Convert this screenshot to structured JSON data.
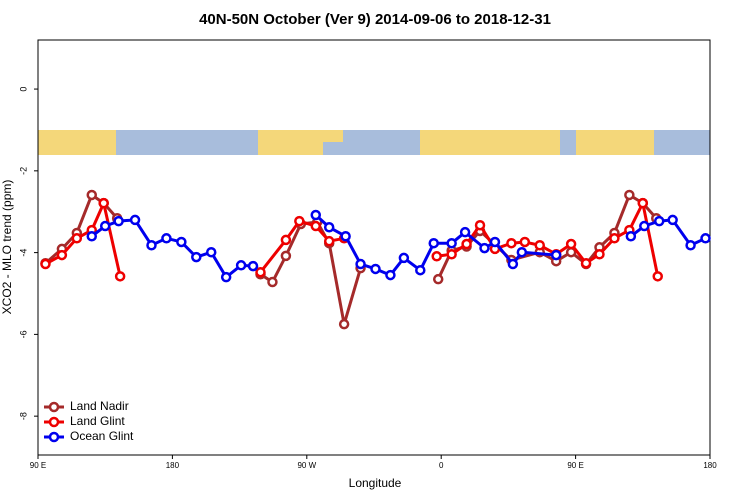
{
  "chart_data": {
    "type": "line",
    "title": "40N-50N October (Ver 9)   2014-09-06 to 2018-12-31",
    "x_label": "Longitude",
    "y_label": "XCO2 - MLO trend (ppm)",
    "xlim": [
      90,
      540
    ],
    "xticks": [
      {
        "value": 90,
        "label": "90 E"
      },
      {
        "value": 180,
        "label": "180"
      },
      {
        "value": 270,
        "label": "90 W"
      },
      {
        "value": 360,
        "label": "0"
      },
      {
        "value": 450,
        "label": "90 E"
      },
      {
        "value": 540,
        "label": "180"
      }
    ],
    "ylim": [
      -8.95,
      1.2
    ],
    "yticks": [
      -8,
      -6,
      -4,
      -2,
      0
    ],
    "legend": "bottom-left",
    "series": [
      {
        "name": "Land Nadir",
        "color": "#a52a2a",
        "x": [
          95,
          106,
          116,
          126,
          134,
          143,
          null,
          239,
          247,
          256,
          266,
          277,
          285,
          295,
          306,
          null,
          358,
          367,
          377,
          386,
          407,
          426,
          437,
          447,
          457,
          466,
          476,
          486,
          495,
          504
        ],
        "values": [
          -4.26,
          -3.91,
          -3.52,
          -2.59,
          -2.79,
          -3.16,
          null,
          -4.53,
          -4.72,
          -4.08,
          -3.3,
          -3.25,
          -3.77,
          -5.75,
          -4.38,
          null,
          -4.65,
          -3.95,
          -3.85,
          -3.47,
          -4.18,
          -3.99,
          -4.21,
          -3.99,
          -4.28,
          -3.87,
          -3.52,
          -2.59,
          -2.79,
          -3.16
        ]
      },
      {
        "name": "Land Glint",
        "color": "#ee0000",
        "x": [
          95,
          106,
          116,
          126,
          134,
          145,
          null,
          239,
          256,
          265,
          276,
          285,
          295,
          null,
          357,
          367,
          377,
          386,
          396,
          407,
          416,
          426,
          437,
          447,
          457,
          466,
          476,
          486,
          495,
          505
        ],
        "values": [
          -4.28,
          -4.06,
          -3.65,
          -3.45,
          -2.79,
          -4.58,
          null,
          -4.48,
          -3.69,
          -3.23,
          -3.35,
          -3.72,
          -3.65,
          null,
          -4.09,
          -4.04,
          -3.79,
          -3.33,
          -3.91,
          -3.77,
          -3.74,
          -3.82,
          -4.04,
          -3.79,
          -4.26,
          -4.04,
          -3.65,
          -3.45,
          -2.79,
          -4.58
        ]
      },
      {
        "name": "Ocean Glint",
        "color": "#0000ee",
        "x": [
          126,
          135,
          144,
          155,
          166,
          176,
          186,
          196,
          206,
          216,
          226,
          234,
          null,
          276,
          285,
          296,
          306,
          316,
          326,
          335,
          346,
          355,
          367,
          376,
          389,
          396,
          408,
          414,
          437,
          null,
          487,
          496,
          506,
          515,
          527,
          537
        ],
        "values": [
          -3.6,
          -3.35,
          -3.23,
          -3.2,
          -3.82,
          -3.65,
          -3.74,
          -4.11,
          -3.99,
          -4.6,
          -4.31,
          -4.33,
          null,
          -3.08,
          -3.38,
          -3.6,
          -4.28,
          -4.4,
          -4.55,
          -4.13,
          -4.43,
          -3.77,
          -3.77,
          -3.5,
          -3.89,
          -3.74,
          -4.28,
          -3.99,
          -4.06,
          null,
          -3.6,
          -3.35,
          -3.23,
          -3.2,
          -3.82,
          -3.65
        ]
      }
    ]
  }
}
